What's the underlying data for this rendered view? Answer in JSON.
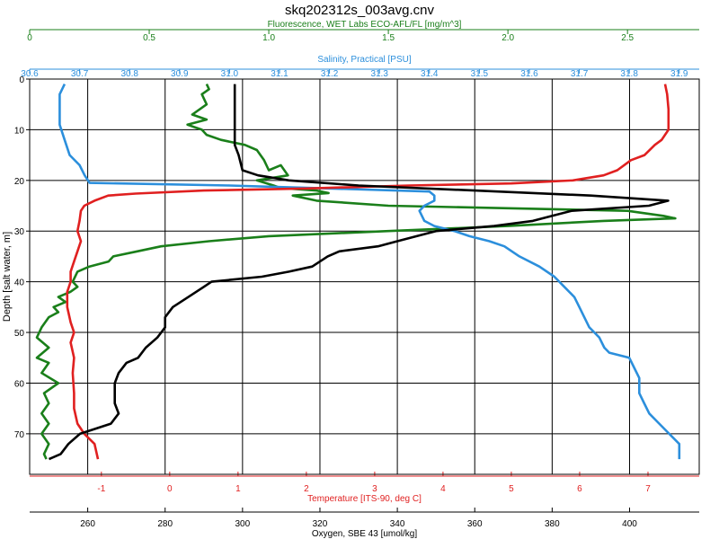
{
  "title": "skq202312s_003avg.cnv",
  "colors": {
    "fluorescence": "#1a7f1a",
    "salinity": "#2c8fdc",
    "temperature": "#e02020",
    "oxygen": "#000000",
    "grid": "#000000"
  },
  "chart_data": {
    "type": "line",
    "title": "skq202312s_003avg.cnv",
    "grid": true,
    "y_axis": {
      "label": "Depth [salt water, m]",
      "range": [
        0,
        78
      ],
      "ticks": [
        0,
        10,
        20,
        30,
        40,
        50,
        60,
        70
      ],
      "inverted": true
    },
    "x_axes": [
      {
        "id": "fluorescence",
        "position": "top-1",
        "label": "Fluorescence, WET Labs ECO-AFL/FL [mg/m^3]",
        "range": [
          0,
          2.8
        ],
        "ticks": [
          0,
          0.5,
          1.0,
          1.5,
          2.0,
          2.5
        ],
        "tick_labels": [
          "0",
          "0.5",
          "1.0",
          "1.5",
          "2.0",
          "2.5"
        ]
      },
      {
        "id": "salinity",
        "position": "top-2",
        "label": "Salinity, Practical [PSU]",
        "range": [
          30.6,
          31.94
        ],
        "ticks": [
          30.6,
          30.7,
          30.8,
          30.9,
          31.0,
          31.1,
          31.2,
          31.3,
          31.4,
          31.5,
          31.6,
          31.7,
          31.8,
          31.9
        ],
        "tick_labels": [
          "30.6",
          "30.7",
          "30.8",
          "30.9",
          "31.0",
          "31.1",
          "31.2",
          "31.3",
          "31.4",
          "31.5",
          "31.6",
          "31.7",
          "31.8",
          "31.9"
        ]
      },
      {
        "id": "temperature",
        "position": "bottom-1",
        "label": "Temperature [ITS-90, deg C]",
        "range": [
          -2.05,
          7.75
        ],
        "ticks": [
          -1,
          0,
          1,
          2,
          3,
          4,
          5,
          6,
          7
        ],
        "tick_labels": [
          "-1",
          "0",
          "1",
          "2",
          "3",
          "4",
          "5",
          "6",
          "7"
        ]
      },
      {
        "id": "oxygen",
        "position": "bottom-2",
        "label": "Oxygen, SBE 43 [umol/kg]",
        "range": [
          245,
          418
        ],
        "ticks": [
          260,
          280,
          300,
          320,
          340,
          360,
          380,
          400
        ],
        "tick_labels": [
          "260",
          "280",
          "300",
          "320",
          "340",
          "360",
          "380",
          "400"
        ]
      }
    ],
    "series": [
      {
        "name": "Fluorescence",
        "axis": "fluorescence",
        "points": [
          [
            0.74,
            1
          ],
          [
            0.75,
            2
          ],
          [
            0.72,
            3
          ],
          [
            0.74,
            5
          ],
          [
            0.68,
            7
          ],
          [
            0.74,
            8
          ],
          [
            0.66,
            9
          ],
          [
            0.72,
            10
          ],
          [
            0.74,
            11
          ],
          [
            0.8,
            12
          ],
          [
            0.9,
            13
          ],
          [
            0.95,
            14
          ],
          [
            0.98,
            16
          ],
          [
            1.0,
            18
          ],
          [
            1.05,
            17
          ],
          [
            1.08,
            19
          ],
          [
            0.95,
            20
          ],
          [
            1.02,
            21
          ],
          [
            1.05,
            21.5
          ],
          [
            1.2,
            22
          ],
          [
            1.25,
            22.5
          ],
          [
            1.1,
            23
          ],
          [
            1.2,
            24
          ],
          [
            1.5,
            25
          ],
          [
            2.0,
            25.5
          ],
          [
            2.5,
            26
          ],
          [
            2.65,
            27
          ],
          [
            2.7,
            27.5
          ],
          [
            2.4,
            28
          ],
          [
            2.0,
            29
          ],
          [
            1.5,
            30
          ],
          [
            1.0,
            31
          ],
          [
            0.75,
            32
          ],
          [
            0.55,
            33
          ],
          [
            0.45,
            34
          ],
          [
            0.35,
            35
          ],
          [
            0.33,
            36
          ],
          [
            0.25,
            37
          ],
          [
            0.2,
            38
          ],
          [
            0.18,
            40
          ],
          [
            0.2,
            41
          ],
          [
            0.17,
            42
          ],
          [
            0.12,
            43
          ],
          [
            0.15,
            44
          ],
          [
            0.1,
            45
          ],
          [
            0.12,
            46
          ],
          [
            0.08,
            47
          ],
          [
            0.05,
            49
          ],
          [
            0.03,
            51
          ],
          [
            0.08,
            53
          ],
          [
            0.03,
            55
          ],
          [
            0.08,
            56
          ],
          [
            0.05,
            58
          ],
          [
            0.12,
            60
          ],
          [
            0.06,
            62
          ],
          [
            0.08,
            64
          ],
          [
            0.05,
            66
          ],
          [
            0.08,
            68
          ],
          [
            0.05,
            70
          ],
          [
            0.08,
            72
          ],
          [
            0.06,
            74
          ],
          [
            0.07,
            75
          ]
        ]
      },
      {
        "name": "Salinity",
        "axis": "salinity",
        "points": [
          [
            30.67,
            1
          ],
          [
            30.66,
            3
          ],
          [
            30.66,
            6
          ],
          [
            30.66,
            9
          ],
          [
            30.67,
            12
          ],
          [
            30.68,
            15
          ],
          [
            30.7,
            17
          ],
          [
            30.71,
            19
          ],
          [
            30.72,
            20.5
          ],
          [
            31.0,
            21
          ],
          [
            31.2,
            21.6
          ],
          [
            31.4,
            22.2
          ],
          [
            31.41,
            23
          ],
          [
            31.41,
            24
          ],
          [
            31.39,
            25
          ],
          [
            31.38,
            26
          ],
          [
            31.39,
            28
          ],
          [
            31.41,
            29
          ],
          [
            31.45,
            30
          ],
          [
            31.48,
            31
          ],
          [
            31.52,
            32
          ],
          [
            31.55,
            33
          ],
          [
            31.58,
            35
          ],
          [
            31.62,
            37
          ],
          [
            31.65,
            39
          ],
          [
            31.67,
            41
          ],
          [
            31.69,
            43
          ],
          [
            31.7,
            45
          ],
          [
            31.71,
            47
          ],
          [
            31.72,
            49
          ],
          [
            31.74,
            51
          ],
          [
            31.75,
            53
          ],
          [
            31.76,
            54
          ],
          [
            31.8,
            55
          ],
          [
            31.81,
            57
          ],
          [
            31.82,
            59
          ],
          [
            31.82,
            62
          ],
          [
            31.83,
            64
          ],
          [
            31.84,
            66
          ],
          [
            31.86,
            68
          ],
          [
            31.88,
            70
          ],
          [
            31.9,
            72
          ],
          [
            31.9,
            74
          ],
          [
            31.9,
            75
          ]
        ]
      },
      {
        "name": "Temperature",
        "axis": "temperature",
        "points": [
          [
            7.25,
            1
          ],
          [
            7.28,
            3
          ],
          [
            7.3,
            6
          ],
          [
            7.3,
            10
          ],
          [
            7.2,
            12
          ],
          [
            7.1,
            13
          ],
          [
            6.95,
            15
          ],
          [
            6.75,
            16
          ],
          [
            6.65,
            17
          ],
          [
            6.55,
            18
          ],
          [
            6.35,
            19
          ],
          [
            5.9,
            20
          ],
          [
            5.0,
            20.6
          ],
          [
            3.5,
            21
          ],
          [
            2.0,
            21.6
          ],
          [
            0.5,
            22
          ],
          [
            -0.5,
            22.6
          ],
          [
            -0.9,
            23
          ],
          [
            -1.1,
            24
          ],
          [
            -1.25,
            25
          ],
          [
            -1.3,
            26
          ],
          [
            -1.32,
            28
          ],
          [
            -1.35,
            30
          ],
          [
            -1.3,
            32
          ],
          [
            -1.35,
            34
          ],
          [
            -1.4,
            36
          ],
          [
            -1.45,
            38
          ],
          [
            -1.45,
            40
          ],
          [
            -1.5,
            42
          ],
          [
            -1.5,
            45
          ],
          [
            -1.45,
            48
          ],
          [
            -1.4,
            50
          ],
          [
            -1.45,
            52
          ],
          [
            -1.4,
            55
          ],
          [
            -1.42,
            58
          ],
          [
            -1.4,
            62
          ],
          [
            -1.4,
            65
          ],
          [
            -1.35,
            68
          ],
          [
            -1.25,
            70
          ],
          [
            -1.1,
            72
          ],
          [
            -1.05,
            75
          ]
        ]
      },
      {
        "name": "Oxygen",
        "axis": "oxygen",
        "points": [
          [
            298,
            1
          ],
          [
            298,
            3
          ],
          [
            298,
            6
          ],
          [
            298,
            10
          ],
          [
            298,
            13
          ],
          [
            299,
            15
          ],
          [
            300,
            18
          ],
          [
            304,
            19
          ],
          [
            312,
            20
          ],
          [
            330,
            21
          ],
          [
            360,
            22
          ],
          [
            390,
            23
          ],
          [
            410,
            24
          ],
          [
            405,
            25
          ],
          [
            385,
            26
          ],
          [
            380,
            27
          ],
          [
            375,
            28
          ],
          [
            365,
            29
          ],
          [
            350,
            30
          ],
          [
            345,
            31
          ],
          [
            340,
            32
          ],
          [
            335,
            33
          ],
          [
            325,
            34
          ],
          [
            322,
            35
          ],
          [
            320,
            36
          ],
          [
            318,
            37
          ],
          [
            312,
            38
          ],
          [
            305,
            39
          ],
          [
            292,
            40
          ],
          [
            290,
            41
          ],
          [
            286,
            43
          ],
          [
            282,
            45
          ],
          [
            280,
            47
          ],
          [
            280,
            49
          ],
          [
            278,
            51
          ],
          [
            275,
            53
          ],
          [
            273,
            55
          ],
          [
            270,
            56
          ],
          [
            268,
            58
          ],
          [
            267,
            60
          ],
          [
            267,
            62
          ],
          [
            267,
            64
          ],
          [
            268,
            66
          ],
          [
            266,
            68
          ],
          [
            258,
            70
          ],
          [
            255,
            72
          ],
          [
            253,
            74
          ],
          [
            250,
            75
          ]
        ]
      }
    ]
  }
}
